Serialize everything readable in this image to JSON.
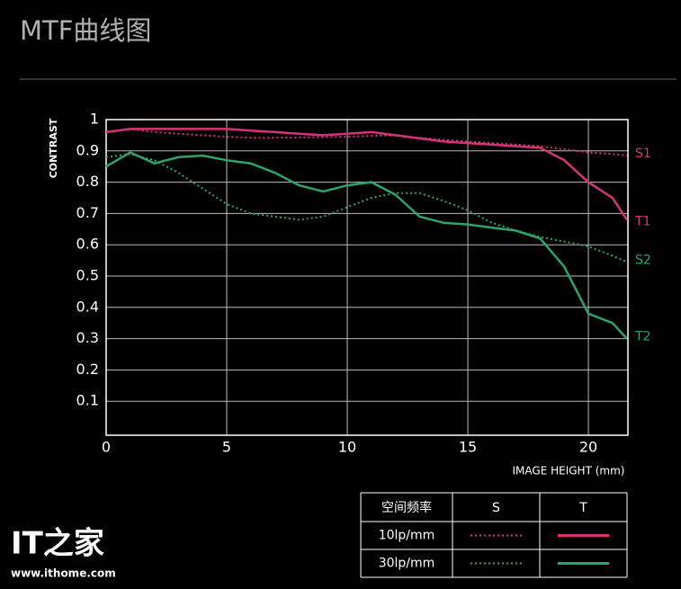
{
  "chart_data": {
    "type": "line",
    "title": "MTF曲线图",
    "ylabel": "CONTRAST",
    "xlabel": "IMAGE HEIGHT (mm)",
    "xlim": [
      0,
      21.64
    ],
    "ylim": [
      0,
      1
    ],
    "xticks": [
      0,
      5,
      10,
      15,
      20
    ],
    "yticks": [
      0.1,
      0.2,
      0.3,
      0.4,
      0.5,
      0.6,
      0.7,
      0.8,
      0.9,
      1
    ],
    "grid": true,
    "series": [
      {
        "name": "S1",
        "color": "#d8337a",
        "dashed": true,
        "x": [
          0,
          1,
          2,
          3,
          4,
          5,
          6,
          7,
          8,
          9,
          10,
          11,
          12,
          13,
          14,
          15,
          16,
          17,
          18,
          19,
          20,
          21,
          21.6
        ],
        "values": [
          0.96,
          0.97,
          0.96,
          0.955,
          0.95,
          0.945,
          0.942,
          0.942,
          0.943,
          0.944,
          0.945,
          0.948,
          0.95,
          0.942,
          0.935,
          0.93,
          0.925,
          0.92,
          0.915,
          0.905,
          0.895,
          0.89,
          0.885
        ]
      },
      {
        "name": "T1",
        "color": "#d8337a",
        "dashed": false,
        "x": [
          0,
          1,
          2,
          3,
          4,
          5,
          6,
          7,
          8,
          9,
          10,
          11,
          12,
          13,
          14,
          15,
          16,
          17,
          18,
          19,
          20,
          21,
          21.6
        ],
        "values": [
          0.96,
          0.97,
          0.97,
          0.97,
          0.97,
          0.97,
          0.965,
          0.96,
          0.955,
          0.95,
          0.955,
          0.96,
          0.95,
          0.94,
          0.93,
          0.925,
          0.92,
          0.915,
          0.91,
          0.87,
          0.8,
          0.75,
          0.68
        ]
      },
      {
        "name": "S2",
        "color": "#2ea46a",
        "dashed": true,
        "x": [
          0,
          1,
          2,
          3,
          4,
          5,
          6,
          7,
          8,
          9,
          10,
          11,
          12,
          13,
          14,
          15,
          16,
          17,
          18,
          19,
          20,
          21,
          21.6
        ],
        "values": [
          0.88,
          0.89,
          0.87,
          0.83,
          0.78,
          0.73,
          0.7,
          0.69,
          0.68,
          0.69,
          0.72,
          0.75,
          0.765,
          0.765,
          0.74,
          0.71,
          0.67,
          0.645,
          0.625,
          0.61,
          0.595,
          0.565,
          0.545
        ]
      },
      {
        "name": "T2",
        "color": "#2ea46a",
        "dashed": false,
        "x": [
          0,
          1,
          2,
          3,
          4,
          5,
          6,
          7,
          8,
          9,
          10,
          11,
          12,
          13,
          14,
          15,
          16,
          17,
          18,
          19,
          20,
          21,
          21.6
        ],
        "values": [
          0.85,
          0.895,
          0.86,
          0.88,
          0.885,
          0.87,
          0.86,
          0.83,
          0.79,
          0.77,
          0.79,
          0.8,
          0.76,
          0.69,
          0.67,
          0.665,
          0.655,
          0.645,
          0.62,
          0.53,
          0.38,
          0.35,
          0.3
        ]
      }
    ],
    "legend_table": {
      "header": [
        "空间频率",
        "S",
        "T"
      ],
      "rows": [
        "10lp/mm",
        "30lp/mm"
      ]
    }
  },
  "watermark": {
    "logo": "IT之家",
    "url": "www.ithome.com"
  }
}
